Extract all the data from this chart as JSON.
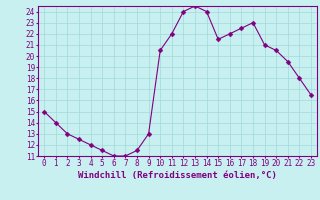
{
  "x": [
    0,
    1,
    2,
    3,
    4,
    5,
    6,
    7,
    8,
    9,
    10,
    11,
    12,
    13,
    14,
    15,
    16,
    17,
    18,
    19,
    20,
    21,
    22,
    23
  ],
  "y": [
    15,
    14,
    13,
    12.5,
    12,
    11.5,
    11,
    11,
    11.5,
    13,
    20.5,
    22,
    24,
    24.5,
    24,
    21.5,
    22,
    22.5,
    23,
    21,
    20.5,
    19.5,
    18,
    16.5
  ],
  "line_color": "#800080",
  "marker": "D",
  "marker_size": 2.5,
  "bg_color": "#c8f0f0",
  "grid_color": "#a0d8d8",
  "xlabel": "Windchill (Refroidissement éolien,°C)",
  "ylim": [
    11,
    24.5
  ],
  "xlim": [
    -0.5,
    23.5
  ],
  "yticks": [
    11,
    12,
    13,
    14,
    15,
    16,
    17,
    18,
    19,
    20,
    21,
    22,
    23,
    24
  ],
  "xticks": [
    0,
    1,
    2,
    3,
    4,
    5,
    6,
    7,
    8,
    9,
    10,
    11,
    12,
    13,
    14,
    15,
    16,
    17,
    18,
    19,
    20,
    21,
    22,
    23
  ],
  "tick_color": "#800080",
  "tick_fontsize": 5.5,
  "xlabel_fontsize": 6.5,
  "spine_color": "#800080",
  "linewidth": 0.8
}
